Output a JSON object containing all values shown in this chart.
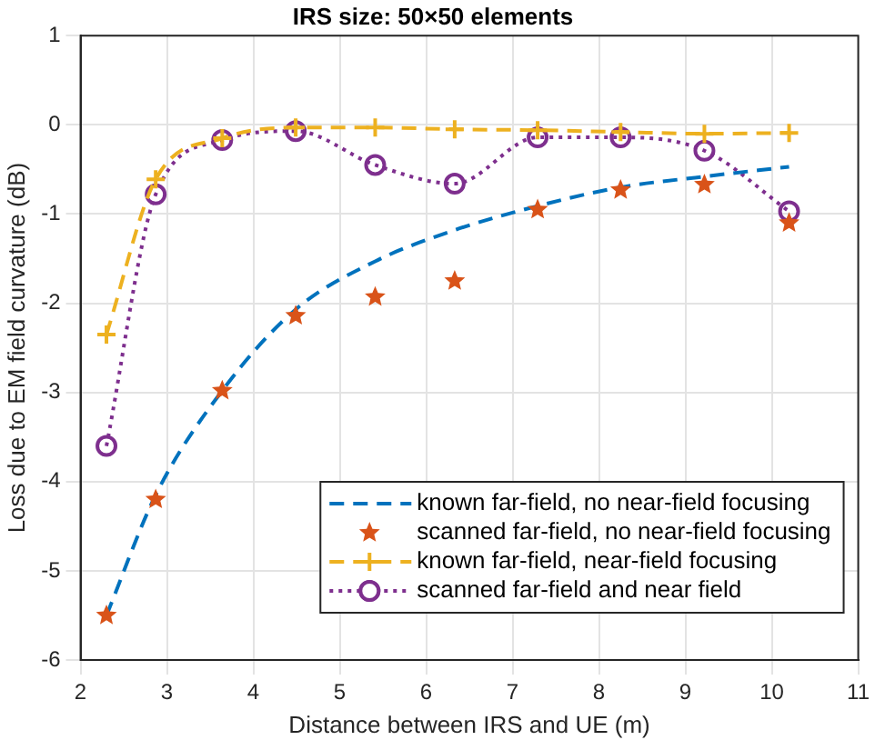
{
  "chart_data": {
    "type": "line",
    "title": "IRS size: 50×50 elements",
    "xlabel": "Distance between IRS and UE (m)",
    "ylabel": "Loss due to EM field curvature (dB)",
    "x": [
      2.3,
      2.87,
      3.64,
      4.49,
      5.41,
      6.33,
      7.29,
      8.25,
      9.22,
      10.2
    ],
    "series": [
      {
        "name": "known far-field, no near-field focusing",
        "type": "line",
        "color": "#0072bd",
        "line_style": "dashed",
        "marker": "none",
        "values": [
          -5.5,
          -4.15,
          -2.98,
          -2.07,
          -1.53,
          -1.18,
          -0.91,
          -0.7,
          -0.58,
          -0.47
        ]
      },
      {
        "name": "scanned far-field, no near-field focusing",
        "type": "scatter",
        "color": "#d95319",
        "marker": "star",
        "values": [
          -5.5,
          -4.2,
          -2.98,
          -2.14,
          -1.93,
          -1.75,
          -0.95,
          -0.73,
          -0.67,
          -1.1
        ]
      },
      {
        "name": "known far-field, near-field focusing",
        "type": "line",
        "color": "#edb120",
        "line_style": "dashed",
        "marker": "cross",
        "values": [
          -2.35,
          -0.61,
          -0.15,
          -0.03,
          -0.03,
          -0.05,
          -0.06,
          -0.08,
          -0.1,
          -0.09
        ]
      },
      {
        "name": "scanned far-field and near field",
        "type": "line",
        "color": "#7e2f8e",
        "line_style": "dotted",
        "marker": "circle",
        "values": [
          -3.6,
          -0.78,
          -0.17,
          -0.07,
          -0.45,
          -0.66,
          -0.14,
          -0.14,
          -0.29,
          -0.97
        ]
      }
    ],
    "xlim": [
      2,
      11
    ],
    "xticks": [
      2,
      3,
      4,
      5,
      6,
      7,
      8,
      9,
      10,
      11
    ],
    "ylim": [
      -6,
      1
    ],
    "yticks": [
      -6,
      -5,
      -4,
      -3,
      -2,
      -1,
      0,
      1
    ],
    "grid": true,
    "legend": "bottom right"
  }
}
